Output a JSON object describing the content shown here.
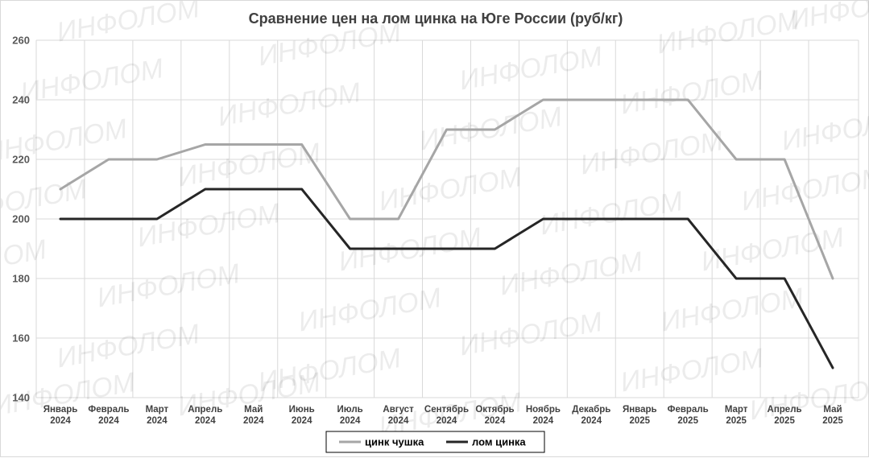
{
  "watermark": "ИНФОЛОМ",
  "chart_data": {
    "type": "line",
    "title": "Сравнение цен на лом цинка на Юге России (руб/кг)",
    "categories": [
      [
        "Январь",
        "2024"
      ],
      [
        "Февраль",
        "2024"
      ],
      [
        "Март",
        "2024"
      ],
      [
        "Апрель",
        "2024"
      ],
      [
        "Май",
        "2024"
      ],
      [
        "Июнь",
        "2024"
      ],
      [
        "Июль",
        "2024"
      ],
      [
        "Август",
        "2024"
      ],
      [
        "Сентябрь",
        "2024"
      ],
      [
        "Октябрь",
        "2024"
      ],
      [
        "Ноябрь",
        "2024"
      ],
      [
        "Декабрь",
        "2024"
      ],
      [
        "Январь",
        "2025"
      ],
      [
        "Февраль",
        "2025"
      ],
      [
        "Март",
        "2025"
      ],
      [
        "Апрель",
        "2025"
      ],
      [
        "Май",
        "2025"
      ]
    ],
    "series": [
      {
        "name": "цинк чушка",
        "color": "#a6a6a6",
        "values": [
          210,
          220,
          220,
          225,
          225,
          225,
          200,
          200,
          230,
          230,
          240,
          240,
          240,
          240,
          220,
          220,
          180
        ]
      },
      {
        "name": "лом цинка",
        "color": "#262626",
        "values": [
          200,
          200,
          200,
          210,
          210,
          210,
          190,
          190,
          190,
          190,
          200,
          200,
          200,
          200,
          180,
          180,
          150
        ]
      }
    ],
    "ylim": [
      140,
      260
    ],
    "yticks": [
      140,
      160,
      180,
      200,
      220,
      240,
      260
    ],
    "grid": true,
    "legend": "bottom"
  }
}
